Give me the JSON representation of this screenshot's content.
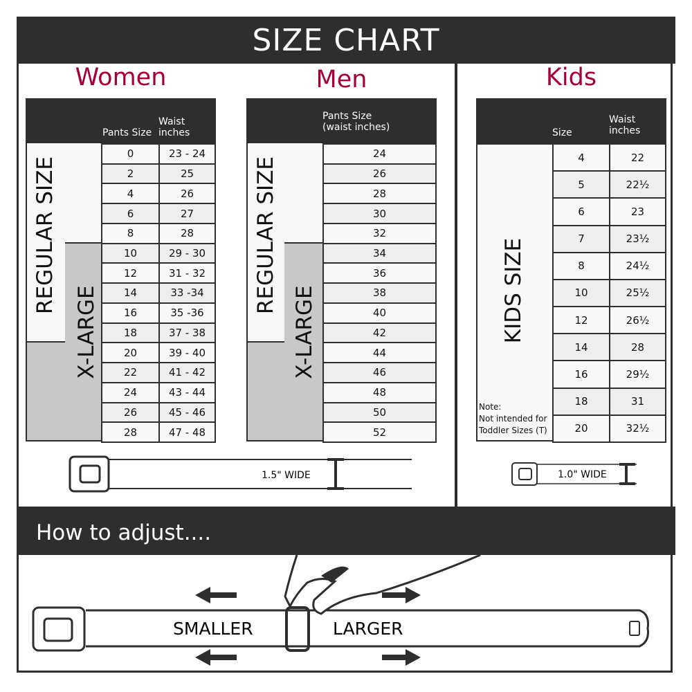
{
  "header": {
    "title": "SIZE CHART"
  },
  "women": {
    "title": "Women",
    "col_headers": [
      "Pants Size",
      "Waist\ninches"
    ],
    "regular_label": "REGULAR SIZE",
    "xlarge_label": "X-LARGE",
    "rows": [
      [
        "0",
        "23 - 24"
      ],
      [
        "2",
        "25"
      ],
      [
        "4",
        "26"
      ],
      [
        "6",
        "27"
      ],
      [
        "8",
        "28"
      ],
      [
        "10",
        "29 - 30"
      ],
      [
        "12",
        "31 - 32"
      ],
      [
        "14",
        "33 -34"
      ],
      [
        "16",
        "35 -36"
      ],
      [
        "18",
        "37 - 38"
      ],
      [
        "20",
        "39 - 40"
      ],
      [
        "22",
        "41 - 42"
      ],
      [
        "24",
        "43 - 44"
      ],
      [
        "26",
        "45 - 46"
      ],
      [
        "28",
        "47 - 48"
      ]
    ],
    "belt_width": "1.5\" WIDE"
  },
  "men": {
    "title": "Men",
    "col_header": "Pants Size\n(waist inches)",
    "regular_label": "REGULAR SIZE",
    "xlarge_label": "X-LARGE",
    "rows": [
      "24",
      "26",
      "28",
      "30",
      "32",
      "34",
      "36",
      "38",
      "40",
      "42",
      "44",
      "46",
      "48",
      "50",
      "52"
    ]
  },
  "kids": {
    "title": "Kids",
    "col_headers": [
      "Size",
      "Waist\ninches"
    ],
    "size_label": "KIDS SIZE",
    "note": "Note:\nNot intended for\nToddler Sizes (T)",
    "rows": [
      [
        "4",
        "22"
      ],
      [
        "5",
        "22½"
      ],
      [
        "6",
        "23"
      ],
      [
        "7",
        "23½"
      ],
      [
        "8",
        "24½"
      ],
      [
        "10",
        "25½"
      ],
      [
        "12",
        "26½"
      ],
      [
        "14",
        "28"
      ],
      [
        "16",
        "29½"
      ],
      [
        "18",
        "31"
      ],
      [
        "20",
        "32½"
      ]
    ],
    "belt_width": "1.0\" WIDE"
  },
  "adjust": {
    "title": "How to adjust....",
    "smaller": "SMALLER",
    "larger": "LARGER"
  },
  "colors": {
    "accent": "#a50034",
    "dark": "#2e2e2e",
    "xlarge_fill": "#c8c8c8",
    "row_alt": "#eeeeee"
  }
}
